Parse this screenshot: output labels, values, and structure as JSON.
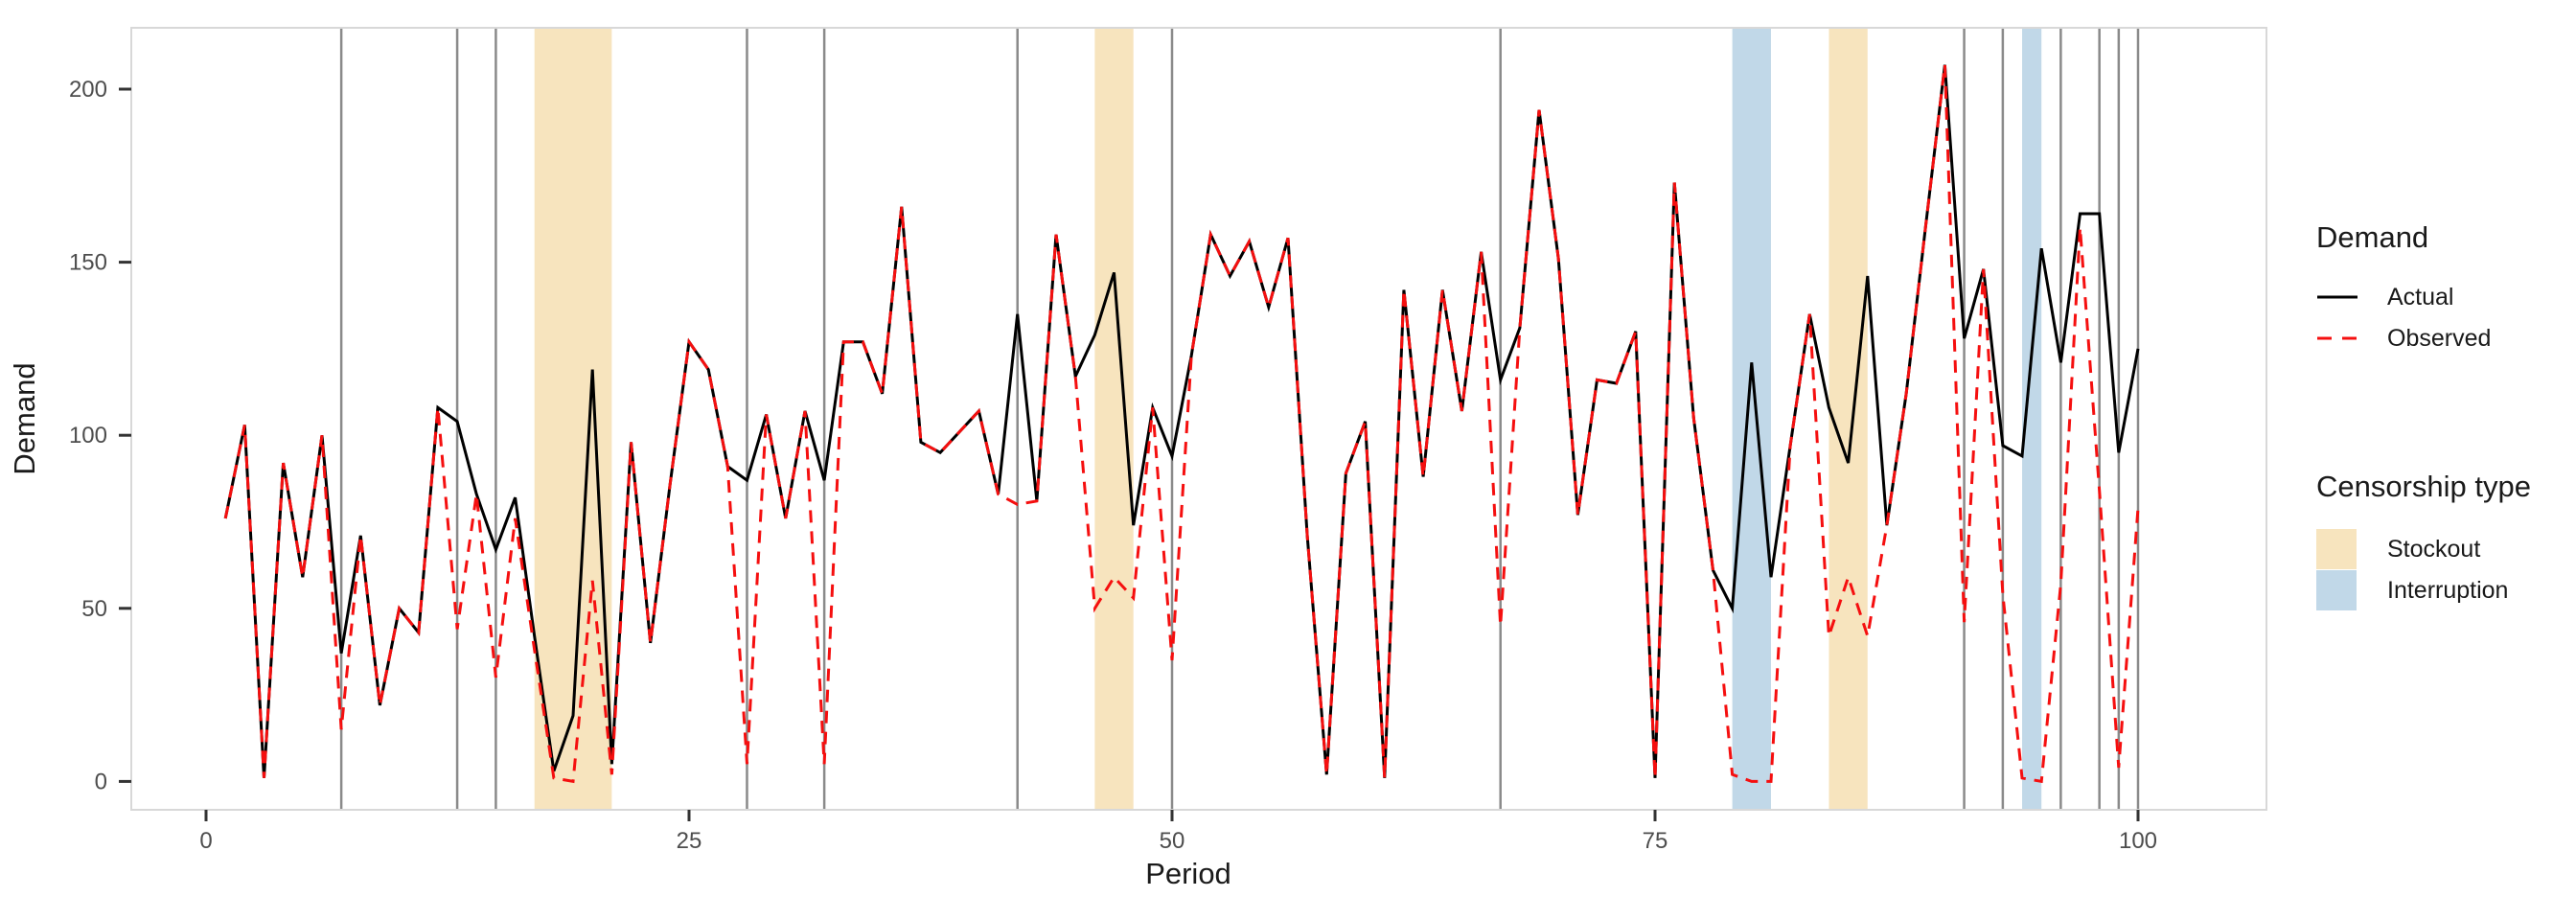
{
  "chart_data": {
    "type": "line",
    "xlabel": "Period",
    "ylabel": "Demand",
    "x_ticks": [
      0,
      25,
      50,
      75,
      100
    ],
    "y_ticks": [
      0,
      50,
      100,
      150,
      200
    ],
    "xlim": [
      -4,
      106
    ],
    "ylim": [
      -8,
      218
    ],
    "grid": "off",
    "x": [
      1,
      2,
      3,
      4,
      5,
      6,
      7,
      8,
      9,
      10,
      11,
      12,
      13,
      14,
      15,
      16,
      17,
      18,
      19,
      20,
      21,
      22,
      23,
      24,
      25,
      26,
      27,
      28,
      29,
      30,
      31,
      32,
      33,
      34,
      35,
      36,
      37,
      38,
      39,
      40,
      41,
      42,
      43,
      44,
      45,
      46,
      47,
      48,
      49,
      50,
      51,
      52,
      53,
      54,
      55,
      56,
      57,
      58,
      59,
      60,
      61,
      62,
      63,
      64,
      65,
      66,
      67,
      68,
      69,
      70,
      71,
      72,
      73,
      74,
      75,
      76,
      77,
      78,
      79,
      80,
      81,
      82,
      83,
      84,
      85,
      86,
      87,
      88,
      89,
      90,
      91,
      92,
      93,
      94,
      95,
      96,
      97,
      98,
      99,
      100
    ],
    "series": [
      {
        "name": "Actual",
        "color": "#000000",
        "style": "solid",
        "values": [
          76,
          103,
          1,
          92,
          59,
          100,
          37,
          71,
          22,
          50,
          43,
          108,
          104,
          83,
          67,
          82,
          42,
          3,
          19,
          119,
          5,
          98,
          40,
          85,
          127,
          119,
          91,
          87,
          106,
          76,
          107,
          87,
          127,
          127,
          112,
          166,
          98,
          95,
          101,
          107,
          83,
          135,
          81,
          158,
          117,
          129,
          147,
          74,
          108,
          94,
          123,
          158,
          146,
          156,
          137,
          157,
          71,
          2,
          89,
          104,
          1,
          142,
          88,
          142,
          107,
          153,
          116,
          131,
          194,
          151,
          77,
          116,
          115,
          130,
          1,
          173,
          105,
          61,
          50,
          121,
          59,
          97,
          135,
          108,
          92,
          146,
          74,
          112,
          160,
          207,
          128,
          148,
          97,
          94,
          154,
          121,
          164,
          164,
          95,
          125
        ]
      },
      {
        "name": "Observed",
        "color": "#f50f0f",
        "style": "dashed",
        "values": [
          76,
          103,
          1,
          92,
          59,
          100,
          15,
          71,
          22,
          50,
          43,
          108,
          44,
          83,
          30,
          76,
          38,
          1,
          0,
          58,
          2,
          98,
          40,
          85,
          127,
          119,
          91,
          5,
          106,
          76,
          107,
          5,
          127,
          127,
          112,
          166,
          98,
          95,
          101,
          107,
          83,
          80,
          81,
          158,
          117,
          50,
          59,
          53,
          108,
          35,
          123,
          158,
          146,
          156,
          137,
          157,
          71,
          2,
          89,
          104,
          1,
          142,
          88,
          142,
          107,
          153,
          45,
          131,
          194,
          151,
          77,
          116,
          115,
          130,
          1,
          173,
          105,
          61,
          2,
          0,
          0,
          97,
          135,
          42,
          59,
          42,
          74,
          112,
          160,
          207,
          46,
          148,
          54,
          1,
          0,
          57,
          160,
          84,
          4,
          79
        ]
      }
    ],
    "censor_lines": [
      7,
      13,
      15,
      28,
      32,
      42,
      50,
      67,
      91,
      93,
      96,
      98,
      99,
      100
    ],
    "censor_line_color": "#8a8a8a",
    "bands": [
      {
        "type": "Stockout",
        "from": 17,
        "to": 21
      },
      {
        "type": "Stockout",
        "from": 46,
        "to": 48
      },
      {
        "type": "Interruption",
        "from": 79,
        "to": 81
      },
      {
        "type": "Stockout",
        "from": 84,
        "to": 86
      },
      {
        "type": "Interruption",
        "from": 94,
        "to": 95
      }
    ],
    "band_colors": {
      "Stockout": "#f7e4be",
      "Interruption": "#c1d8e8"
    },
    "axis": {
      "tick_color": "#333333",
      "tick_label_color": "#4d4d4d",
      "panel_border_color": "#d8d8d8"
    },
    "legend": {
      "demand_title": "Demand",
      "actual_label": "Actual",
      "observed_label": "Observed",
      "censorship_title": "Censorship type",
      "stockout_label": "Stockout",
      "interruption_label": "Interruption"
    }
  }
}
